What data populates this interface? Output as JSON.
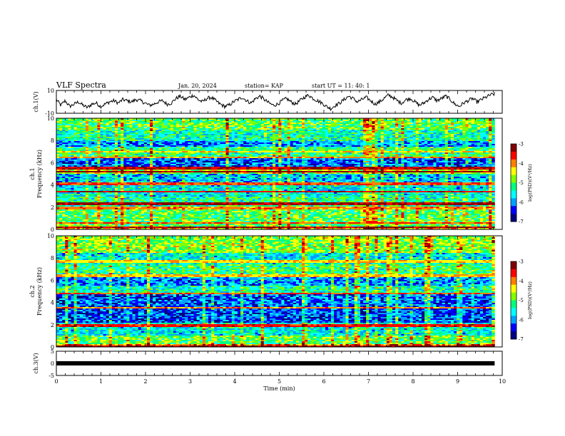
{
  "header": {
    "title": "VLF Spectra",
    "date": "Jan. 20, 2024",
    "station": "station= KAP",
    "start": "start  UT  =   11: 40: 1"
  },
  "chart_data": [
    {
      "type": "line",
      "name": "ch1-waveform",
      "ylabel": "ch.1(V)",
      "ylim": [
        -10,
        10
      ],
      "yticks": [
        "10",
        "-10"
      ],
      "xlim": [
        0,
        10
      ],
      "x_end": 9.83,
      "values": [
        2,
        -3,
        1,
        -4,
        -2,
        0,
        -3,
        -5,
        -2,
        -1,
        -4,
        -2,
        0,
        1,
        -1,
        2,
        1,
        0,
        2,
        1,
        -1,
        -3,
        -2,
        0,
        1,
        -2,
        -1,
        3,
        5,
        2,
        4,
        6,
        2,
        0,
        3,
        4,
        1,
        -2,
        -4,
        -3,
        0,
        2,
        4,
        1,
        -1,
        3,
        5,
        2,
        -1,
        -3,
        -2,
        1,
        3,
        0,
        -2,
        1,
        4,
        6,
        3,
        1,
        -1,
        -4,
        -6,
        -3,
        -1,
        2,
        5,
        3,
        0,
        2,
        4,
        1,
        -2,
        0,
        3,
        6,
        4,
        1,
        -1,
        2,
        3,
        0,
        -3,
        -1,
        2,
        4,
        1,
        3,
        5,
        2,
        -2,
        -4,
        -1,
        1,
        3,
        0,
        2,
        4,
        6,
        7
      ]
    },
    {
      "type": "heatmap",
      "name": "ch1-spectrogram",
      "ylabel": "ch.1\nFrequency (kHz)",
      "ylim": [
        0,
        10
      ],
      "yticks": [
        "10",
        "8",
        "6",
        "4",
        "2",
        "0"
      ],
      "xlim": [
        0,
        10
      ],
      "x_end": 9.83,
      "colorbar": {
        "label": "log(PSD)(V²/Hz)",
        "range": [
          -7,
          -3
        ],
        "ticks": [
          "-3",
          "-4",
          "-5",
          "-6",
          "-7"
        ]
      },
      "bands": [
        {
          "from": 9.0,
          "to": 10.0,
          "level": -5.0
        },
        {
          "from": 8.0,
          "to": 9.0,
          "level": -5.4
        },
        {
          "from": 7.5,
          "to": 8.0,
          "level": -6.0
        },
        {
          "from": 6.5,
          "to": 7.5,
          "level": -5.2
        },
        {
          "from": 5.6,
          "to": 6.5,
          "level": -6.2
        },
        {
          "from": 5.0,
          "to": 5.6,
          "level": -4.6
        },
        {
          "from": 4.2,
          "to": 5.0,
          "level": -5.8
        },
        {
          "from": 3.0,
          "to": 4.2,
          "level": -5.6
        },
        {
          "from": 2.0,
          "to": 3.0,
          "level": -5.3
        },
        {
          "from": 0.3,
          "to": 2.0,
          "level": -5.0
        },
        {
          "from": 0.0,
          "to": 0.3,
          "level": -4.2
        }
      ],
      "lines": [
        {
          "f": 5.2,
          "level": -3.2
        },
        {
          "f": 5.5,
          "level": -3.4
        },
        {
          "f": 4.1,
          "level": -3.8
        },
        {
          "f": 3.4,
          "level": -3.5
        },
        {
          "f": 2.3,
          "level": -3.3
        },
        {
          "f": 1.9,
          "level": -4.0
        },
        {
          "f": 0.2,
          "level": -3.3
        },
        {
          "f": 0.6,
          "level": -3.8
        },
        {
          "f": 6.5,
          "level": -4.0
        },
        {
          "f": 7.0,
          "level": -4.3
        }
      ]
    },
    {
      "type": "heatmap",
      "name": "ch2-spectrogram",
      "ylabel": "ch.2\nFrequency (kHz)",
      "ylim": [
        0,
        10
      ],
      "yticks": [
        "10",
        "8",
        "6",
        "4",
        "2",
        "0"
      ],
      "xlim": [
        0,
        10
      ],
      "x_end": 9.83,
      "colorbar": {
        "label": "log(PSD)(V²/Hz)",
        "range": [
          -7,
          -3
        ],
        "ticks": [
          "-3",
          "-4",
          "-5",
          "-6",
          "-7"
        ]
      },
      "bands": [
        {
          "from": 8.5,
          "to": 10.0,
          "level": -4.8
        },
        {
          "from": 7.5,
          "to": 8.5,
          "level": -5.6
        },
        {
          "from": 6.5,
          "to": 7.5,
          "level": -5.2
        },
        {
          "from": 5.5,
          "to": 6.5,
          "level": -6.0
        },
        {
          "from": 4.8,
          "to": 5.5,
          "level": -5.4
        },
        {
          "from": 3.6,
          "to": 4.8,
          "level": -6.2
        },
        {
          "from": 2.2,
          "to": 3.6,
          "level": -6.3
        },
        {
          "from": 1.0,
          "to": 2.2,
          "level": -5.6
        },
        {
          "from": 0.2,
          "to": 1.0,
          "level": -5.0
        },
        {
          "from": 0.0,
          "to": 0.2,
          "level": -4.0
        }
      ],
      "lines": [
        {
          "f": 4.8,
          "level": -3.8
        },
        {
          "f": 3.5,
          "level": -4.0
        },
        {
          "f": 2.0,
          "level": -3.9
        },
        {
          "f": 1.9,
          "level": -3.6
        },
        {
          "f": 0.1,
          "level": -3.3
        },
        {
          "f": 7.7,
          "level": -4.3
        },
        {
          "f": 6.4,
          "level": -4.2
        }
      ]
    },
    {
      "type": "line",
      "name": "ch3-waveform",
      "ylabel": "ch.3(V)",
      "ylim": [
        -5,
        5
      ],
      "yticks": [
        "5",
        "0",
        "-5"
      ],
      "xlim": [
        0,
        10
      ],
      "x_end": 9.83,
      "value": 0
    }
  ],
  "xaxis": {
    "label": "Time (min)",
    "ticks": [
      "0",
      "1",
      "2",
      "3",
      "4",
      "5",
      "6",
      "7",
      "8",
      "9",
      "10"
    ]
  },
  "colors": {
    "colormap": [
      "#000080",
      "#0000ff",
      "#00a0ff",
      "#00ffff",
      "#00ff80",
      "#80ff00",
      "#ffff00",
      "#ff8000",
      "#ff0000",
      "#800000"
    ]
  }
}
